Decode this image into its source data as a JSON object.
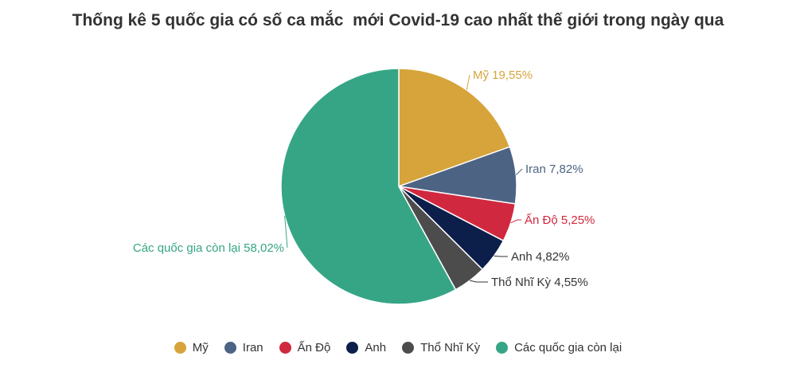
{
  "chart_data": {
    "type": "pie",
    "title": "Thống kê 5 quốc gia có số ca mắc  mới Covid-19 cao nhất thế giới trong ngày qua",
    "slices": [
      {
        "label": "Mỹ",
        "value": 19.55,
        "display": "Mỹ 19,55%",
        "color": "#d6a43a"
      },
      {
        "label": "Iran",
        "value": 7.82,
        "display": "Iran 7,82%",
        "color": "#4d6384"
      },
      {
        "label": "Ấn Độ",
        "value": 5.25,
        "display": "Ấn Độ 5,25%",
        "color": "#d0293f"
      },
      {
        "label": "Anh",
        "value": 4.82,
        "display": "Anh 4,82%",
        "color": "#0c1e4a"
      },
      {
        "label": "Thổ Nhĩ Kỳ",
        "value": 4.55,
        "display": "Thổ Nhĩ Kỳ 4,55%",
        "color": "#4c4c4c"
      },
      {
        "label": "Các quốc gia còn lại",
        "value": 58.02,
        "display": "Các quốc gia còn lại 58,02%",
        "color": "#36a586"
      }
    ],
    "legend_position": "bottom"
  }
}
